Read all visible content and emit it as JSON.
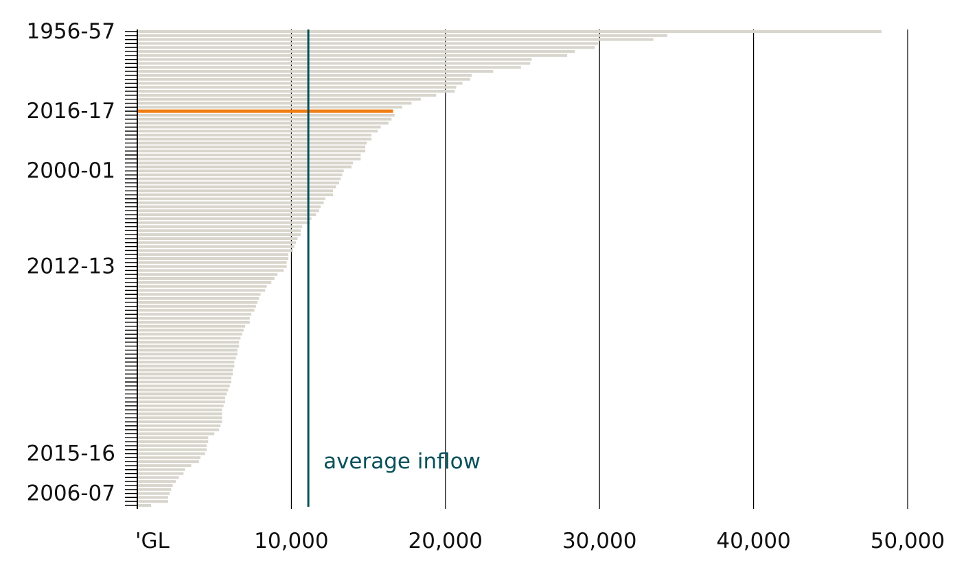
{
  "chart_data": {
    "type": "bar",
    "orientation": "horizontal",
    "title": "",
    "xlabel": "",
    "ylabel": "",
    "xlim": [
      0,
      50000
    ],
    "x_ticks": [
      {
        "value": 0,
        "label": "'GL"
      },
      {
        "value": 10000,
        "label": "10,000"
      },
      {
        "value": 20000,
        "label": "20,000"
      },
      {
        "value": 30000,
        "label": "30,000"
      },
      {
        "value": 40000,
        "label": "40,000"
      },
      {
        "value": 50000,
        "label": "50,000"
      }
    ],
    "grid": "vertical lines at x ticks",
    "sorted": "descending",
    "bar_color": "#d7d5cc",
    "highlight_color": "#f07d14",
    "average_color": "#08505a",
    "highlight": {
      "label": "2016-17",
      "index": 20
    },
    "average": {
      "value": 11100,
      "label": "average inflow"
    },
    "labeled_years": [
      {
        "label": "1956-57",
        "index": 0
      },
      {
        "label": "2016-17",
        "index": 20
      },
      {
        "label": "2000-01",
        "index": 35
      },
      {
        "label": "2012-13",
        "index": 59
      },
      {
        "label": "2015-16",
        "index": 106
      },
      {
        "label": "2006-07",
        "index": 116
      }
    ],
    "values": [
      48300,
      34400,
      33500,
      29900,
      29700,
      28400,
      27900,
      25600,
      25500,
      24900,
      23100,
      21700,
      21600,
      21100,
      20700,
      20600,
      19400,
      18400,
      17800,
      17200,
      16600,
      16700,
      16500,
      16300,
      15800,
      15600,
      15200,
      15200,
      14900,
      14800,
      14800,
      14500,
      14500,
      14000,
      13900,
      13400,
      13300,
      13200,
      13100,
      12900,
      12700,
      12700,
      12200,
      12100,
      11900,
      11800,
      11600,
      11300,
      11200,
      10700,
      10600,
      10600,
      10400,
      10300,
      10200,
      10100,
      9800,
      9800,
      9700,
      9700,
      9500,
      9100,
      8900,
      8700,
      8400,
      8300,
      8000,
      7900,
      7800,
      7700,
      7600,
      7400,
      7300,
      7300,
      7000,
      6900,
      6800,
      6700,
      6600,
      6600,
      6500,
      6500,
      6400,
      6300,
      6300,
      6200,
      6200,
      6100,
      6100,
      6000,
      5900,
      5800,
      5700,
      5700,
      5600,
      5500,
      5500,
      5500,
      5500,
      5400,
      5300,
      5000,
      4600,
      4600,
      4500,
      4500,
      4400,
      4100,
      4000,
      3500,
      3100,
      3000,
      2700,
      2500,
      2300,
      2200,
      2100,
      2000,
      2000,
      900
    ]
  }
}
